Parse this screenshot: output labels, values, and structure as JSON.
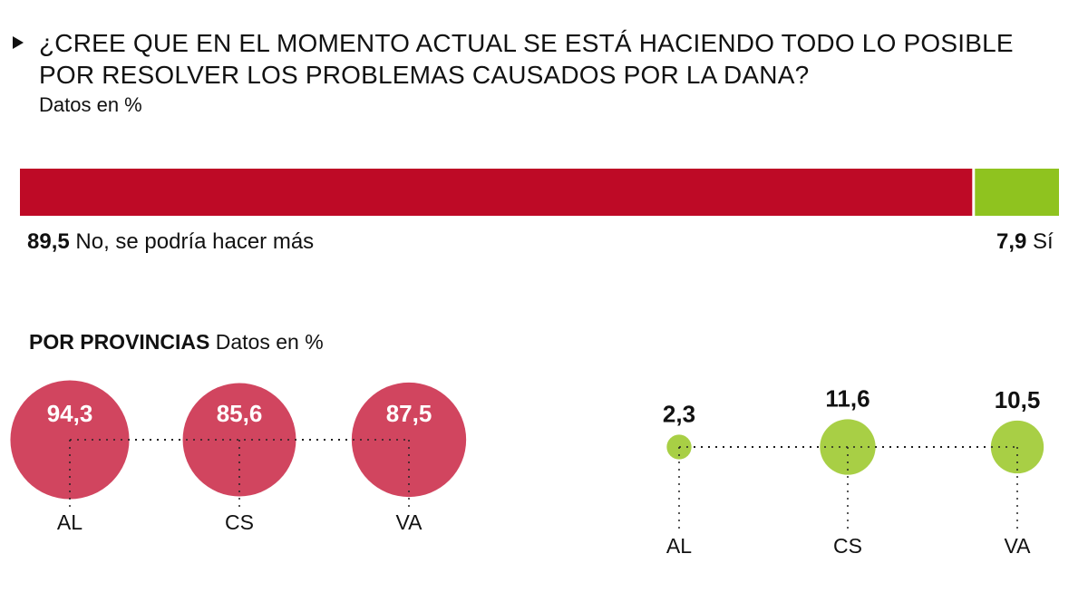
{
  "header": {
    "question": "¿CREE QUE EN EL MOMENTO ACTUAL SE ESTÁ HACIENDO TODO LO POSIBLE POR RESOLVER LOS PROBLEMAS CAUSADOS POR LA DANA?",
    "units": "Datos en %"
  },
  "provincias": {
    "title": "POR PROVINCIAS",
    "units": "Datos en %"
  },
  "chart_data": [
    {
      "type": "bar",
      "orientation": "horizontal-stacked",
      "series": [
        {
          "name": "No, se podría hacer más",
          "value": 89.5,
          "label": "89,5",
          "color": "#be0a26"
        },
        {
          "name": "Sí",
          "value": 7.9,
          "label": "7,9",
          "color": "#8fc31f"
        }
      ]
    },
    {
      "type": "scatter",
      "subtype": "proportional-bubbles",
      "categories": [
        "AL",
        "CS",
        "VA"
      ],
      "series": [
        {
          "name": "No, se podría hacer más",
          "values": [
            94.3,
            85.6,
            87.5
          ],
          "labels": [
            "94,3",
            "85,6",
            "87,5"
          ],
          "color": "#d1455f"
        },
        {
          "name": "Sí",
          "values": [
            2.3,
            11.6,
            10.5
          ],
          "labels": [
            "2,3",
            "11,6",
            "10,5"
          ],
          "color": "#a8cf45"
        }
      ]
    }
  ]
}
